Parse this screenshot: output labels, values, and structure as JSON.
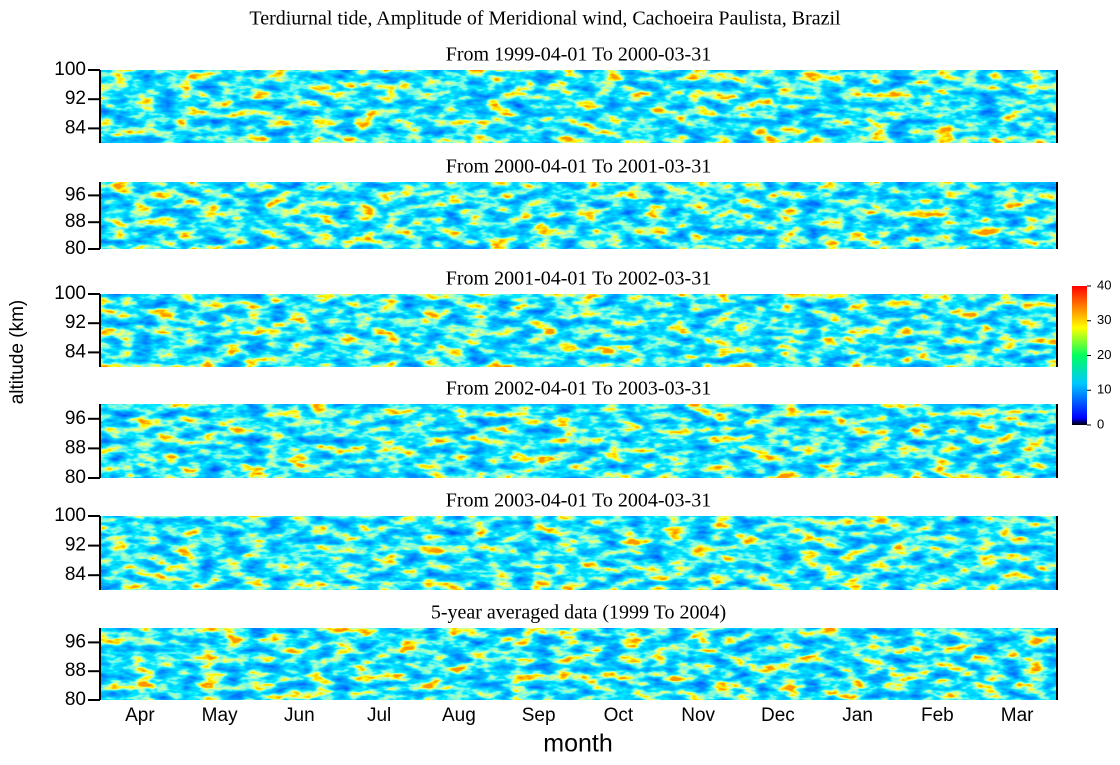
{
  "chart_data": {
    "type": "heatmap",
    "title": "Terdiurnal tide, Amplitude of Meridional wind, Cachoeira Paulista, Brazil",
    "ylabel": "altitude (km)",
    "xlabel": "month",
    "categories": [
      "Apr",
      "May",
      "Jun",
      "Jul",
      "Aug",
      "Sep",
      "Oct",
      "Nov",
      "Dec",
      "Jan",
      "Feb",
      "Mar"
    ],
    "panels": [
      {
        "title": "From 1999-04-01 To 2000-03-31",
        "ylim": [
          80,
          100
        ],
        "yticks": [
          84,
          92,
          100
        ]
      },
      {
        "title": "From 2000-04-01 To 2001-03-31",
        "ylim": [
          80,
          100
        ],
        "yticks": [
          80,
          88,
          96
        ]
      },
      {
        "title": "From 2001-04-01 To 2002-03-31",
        "ylim": [
          80,
          100
        ],
        "yticks": [
          84,
          92,
          100
        ]
      },
      {
        "title": "From 2002-04-01 To 2003-03-31",
        "ylim": [
          80,
          100
        ],
        "yticks": [
          80,
          88,
          96
        ]
      },
      {
        "title": "From 2003-04-01 To 2004-03-31",
        "ylim": [
          80,
          100
        ],
        "yticks": [
          84,
          92,
          100
        ]
      },
      {
        "title": "5-year averaged data (1999 To 2004)",
        "ylim": [
          80,
          100
        ],
        "yticks": [
          80,
          88,
          96
        ]
      }
    ],
    "colorbar": {
      "lim": [
        0,
        40
      ],
      "ticks": [
        0,
        10,
        20,
        30,
        40
      ]
    }
  }
}
